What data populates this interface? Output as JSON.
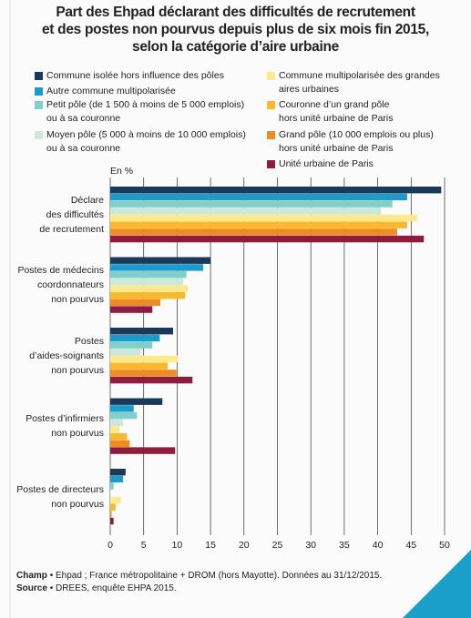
{
  "chart_data": {
    "type": "hbar",
    "title": "Part des Ehpad déclarant des difficultés de recrutement\net des postes non pourvus depuis plus de six mois fin 2015,\nselon la catégorie d’aire urbaine",
    "unit_label": "En %",
    "categories": [
      "Déclare\ndes difficultés\nde recrutement",
      "Postes de médecins\ncoordonnateurs\nnon pourvus",
      "Postes\nd’aides-soignants\nnon pourvus",
      "Postes d’infirmiers\nnon pourvus",
      "Postes de directeurs\nnon pourvus"
    ],
    "series": [
      {
        "name": "Commune isolée hors influence des pôles",
        "color": "#1b3a5a",
        "values": [
          49.5,
          15.0,
          9.4,
          7.8,
          2.3
        ]
      },
      {
        "name": "Autre commune multipolarisée",
        "color": "#1b9bcb",
        "values": [
          44.4,
          13.9,
          7.4,
          3.5,
          1.9
        ]
      },
      {
        "name": "Petit pôle (de 1 500 à moins de 5 000 emplois)\nou à sa couronne",
        "color": "#80cfca",
        "values": [
          42.2,
          11.4,
          6.3,
          4.0,
          0.5
        ]
      },
      {
        "name": "Moyen pôle (5 000 à moins de 10 000 emplois)\nou à sa couronne",
        "color": "#cce8da",
        "values": [
          40.5,
          10.9,
          4.6,
          1.9,
          0.1
        ]
      },
      {
        "name": "Commune multipolarisée des grandes\naires urbaines",
        "color": "#fde98c",
        "values": [
          45.9,
          11.6,
          10.1,
          1.4,
          1.6
        ]
      },
      {
        "name": "Couronne d’un grand pôle\nhors unité urbaine de Paris",
        "color": "#f8b92c",
        "values": [
          44.4,
          11.2,
          8.6,
          2.5,
          0.8
        ]
      },
      {
        "name": "Grand pôle (10 000 emplois ou plus)\nhors unité urbaine de Paris",
        "color": "#f08a24",
        "values": [
          42.9,
          7.5,
          9.9,
          2.9,
          0.2
        ]
      },
      {
        "name": "Unité urbaine de Paris",
        "color": "#8e1c3e",
        "values": [
          46.9,
          6.3,
          12.3,
          9.7,
          0.5
        ]
      }
    ],
    "xlim": [
      0,
      50
    ],
    "xticks": [
      0,
      5,
      10,
      15,
      20,
      25,
      30,
      35,
      40,
      45,
      50
    ],
    "grid": true,
    "notes": [
      {
        "label": "Champ",
        "text": "• Ehpad ; France métropolitaine + DROM (hors Mayotte). Données au 31/12/2015."
      },
      {
        "label": "Source",
        "text": "• DREES, enquête EHPA 2015."
      }
    ]
  }
}
